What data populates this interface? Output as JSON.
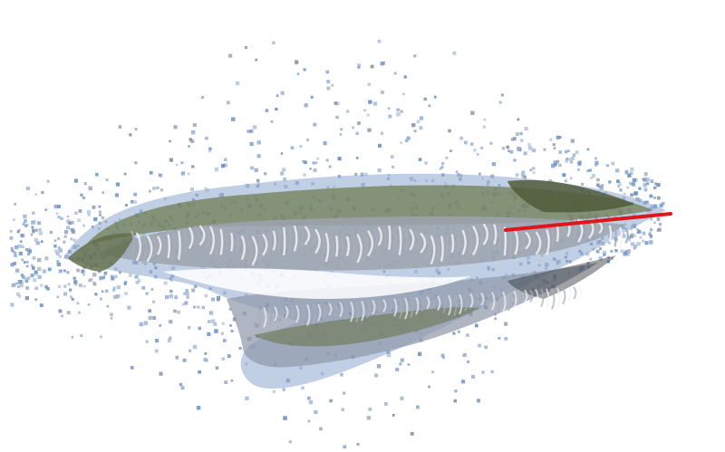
{
  "scene": {
    "kind": "3d-point-cloud-render",
    "background_color": "#ffffff",
    "colors": {
      "sky_blue": "#6f94c4",
      "pale_blue": "#9ab3d4",
      "steel_grey": "#8c95a6",
      "ground_green": "#6f7d52",
      "dark_green": "#4f5b3a",
      "stripe_grey": "#a9aeb8",
      "stripe_white": "#f2f3f5",
      "shadow_dark": "#2b2e33",
      "trajectory_red": "#e0161b"
    },
    "elements": {
      "scatter_points": "sparse-outlier-points",
      "surface": "reconstructed-surface-band",
      "stripes": "wall-stripe-pattern",
      "trajectory": "camera-trajectory-line"
    }
  }
}
